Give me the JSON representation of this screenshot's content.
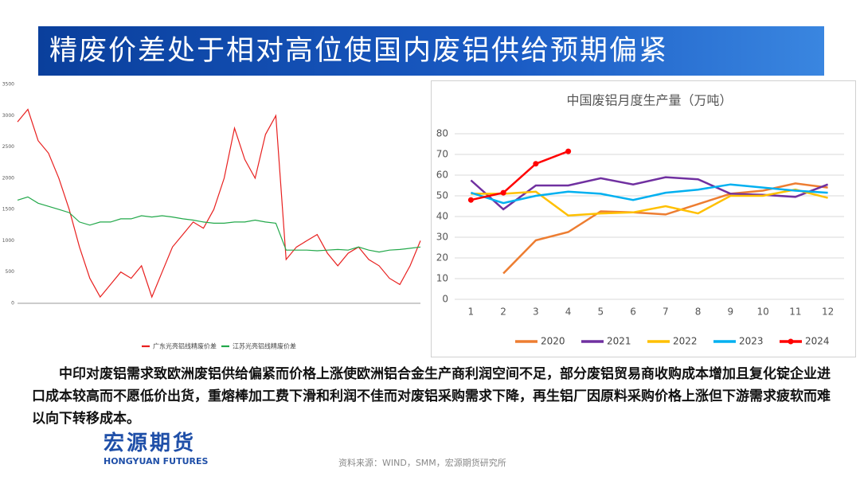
{
  "header": {
    "title": "精废价差处于相对高位使国内废铝供给预期偏紧"
  },
  "chart_data": [
    {
      "type": "line",
      "yticks": [
        0,
        500,
        1000,
        1500,
        2000,
        2500,
        3000,
        3500
      ],
      "ylim": [
        0,
        3500
      ],
      "grid": false,
      "series": [
        {
          "name": "广东光亮铝线精废价差",
          "color": "#e8201f",
          "values": [
            2900,
            3100,
            2600,
            2400,
            2000,
            1500,
            900,
            400,
            100,
            300,
            500,
            400,
            600,
            100,
            500,
            900,
            1100,
            1300,
            1200,
            1500,
            2000,
            2800,
            2300,
            2000,
            2700,
            3000,
            700,
            900,
            1000,
            1100,
            800,
            600,
            800,
            900,
            700,
            600,
            400,
            300,
            600,
            1000
          ]
        },
        {
          "name": "江苏光亮铝线精废价差",
          "color": "#22a84a",
          "values": [
            1650,
            1700,
            1600,
            1550,
            1500,
            1450,
            1300,
            1250,
            1300,
            1300,
            1350,
            1350,
            1400,
            1380,
            1400,
            1380,
            1350,
            1330,
            1300,
            1280,
            1280,
            1300,
            1300,
            1330,
            1300,
            1280,
            850,
            850,
            850,
            840,
            850,
            860,
            850,
            900,
            850,
            820,
            850,
            860,
            880,
            900
          ]
        }
      ]
    },
    {
      "type": "line",
      "title": "中国废铝月度生产量（万吨）",
      "categories": [
        1,
        2,
        3,
        4,
        5,
        6,
        7,
        8,
        9,
        10,
        11,
        12
      ],
      "ylim": [
        0,
        80
      ],
      "yticks": [
        0,
        10,
        20,
        30,
        40,
        50,
        60,
        70,
        80
      ],
      "grid": true,
      "series": [
        {
          "name": "2020",
          "color": "#ed7d31",
          "values": [
            null,
            12.5,
            28.5,
            32.5,
            42.5,
            42,
            41,
            46,
            51,
            52.5,
            56,
            54
          ]
        },
        {
          "name": "2021",
          "color": "#7030a0",
          "values": [
            57.5,
            43.5,
            55,
            55,
            58.5,
            55.5,
            59,
            58,
            51,
            50.5,
            49.5,
            55.5
          ]
        },
        {
          "name": "2022",
          "color": "#ffc000",
          "values": [
            51,
            51,
            52,
            40.5,
            41.5,
            42,
            45,
            41.5,
            50,
            50,
            53,
            49
          ]
        },
        {
          "name": "2023",
          "color": "#00b0f0",
          "values": [
            51.5,
            46.5,
            50,
            52,
            51,
            48,
            51.5,
            53,
            55.5,
            54,
            52.5,
            51.5
          ]
        },
        {
          "name": "2024",
          "color": "#ff0000",
          "markers": true,
          "values": [
            48,
            51.5,
            65.5,
            71.5,
            null,
            null,
            null,
            null,
            null,
            null,
            null,
            null
          ]
        }
      ]
    }
  ],
  "body": {
    "text": "中印对废铝需求致欧洲废铝供给偏紧而价格上涨使欧洲铝合金生产商利润空间不足，部分废铝贸易商收购成本增加且复化锭企业进口成本较高而不愿低价出货，重熔棒加工费下滑和利润不佳而对废铝采购需求下降，再生铝厂因原料采购价格上涨但下游需求疲软而难以向下转移成本。"
  },
  "logo": {
    "name": "宏源期货",
    "english": "HONGYUAN FUTURES"
  },
  "source": "资料来源：WIND，SMM，宏源期货研究所"
}
